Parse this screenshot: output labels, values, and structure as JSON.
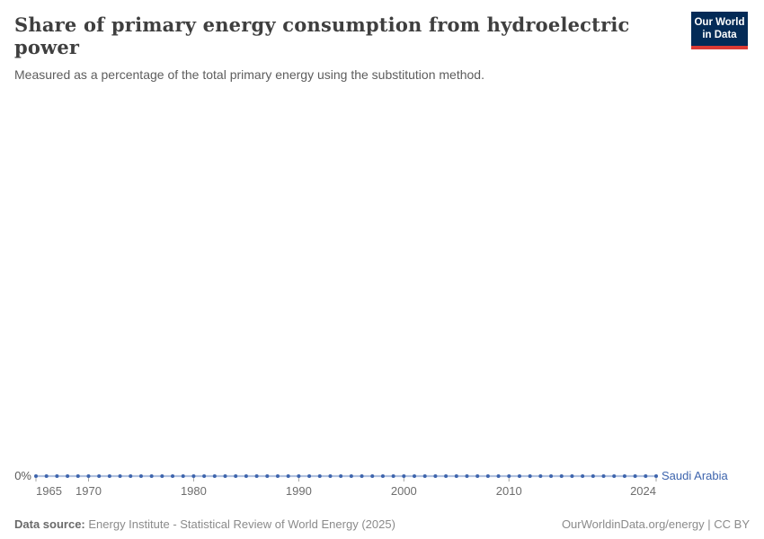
{
  "header": {
    "title": "Share of primary energy consumption from hydroelectric power",
    "subtitle": "Measured as a percentage of the total primary energy using the substitution method."
  },
  "logo": {
    "line1": "Our World",
    "line2": "in Data",
    "background_color": "#042b57",
    "bar_color": "#dc3a34"
  },
  "chart_data": {
    "type": "line",
    "title": "Share of primary energy consumption from hydroelectric power",
    "xlabel": "",
    "ylabel": "",
    "xlim": [
      1965,
      2024
    ],
    "ylim": [
      0,
      1
    ],
    "grid": false,
    "legend_position": "end-of-line",
    "ytick_label": "0%",
    "xticks": [
      {
        "year": 1965,
        "label": "1965",
        "align": "start"
      },
      {
        "year": 1970,
        "label": "1970",
        "align": "middle"
      },
      {
        "year": 1980,
        "label": "1980",
        "align": "middle"
      },
      {
        "year": 1990,
        "label": "1990",
        "align": "middle"
      },
      {
        "year": 2000,
        "label": "2000",
        "align": "middle"
      },
      {
        "year": 2010,
        "label": "2010",
        "align": "middle"
      },
      {
        "year": 2024,
        "label": "2024",
        "align": "end"
      }
    ],
    "x": [
      1965,
      1966,
      1967,
      1968,
      1969,
      1970,
      1971,
      1972,
      1973,
      1974,
      1975,
      1976,
      1977,
      1978,
      1979,
      1980,
      1981,
      1982,
      1983,
      1984,
      1985,
      1986,
      1987,
      1988,
      1989,
      1990,
      1991,
      1992,
      1993,
      1994,
      1995,
      1996,
      1997,
      1998,
      1999,
      2000,
      2001,
      2002,
      2003,
      2004,
      2005,
      2006,
      2007,
      2008,
      2009,
      2010,
      2011,
      2012,
      2013,
      2014,
      2015,
      2016,
      2017,
      2018,
      2019,
      2020,
      2021,
      2022,
      2023,
      2024
    ],
    "series": [
      {
        "name": "Saudi Arabia",
        "color": "#3d64ad",
        "values": [
          0,
          0,
          0,
          0,
          0,
          0,
          0,
          0,
          0,
          0,
          0,
          0,
          0,
          0,
          0,
          0,
          0,
          0,
          0,
          0,
          0,
          0,
          0,
          0,
          0,
          0,
          0,
          0,
          0,
          0,
          0,
          0,
          0,
          0,
          0,
          0,
          0,
          0,
          0,
          0,
          0,
          0,
          0,
          0,
          0,
          0,
          0,
          0,
          0,
          0,
          0,
          0,
          0,
          0,
          0,
          0,
          0,
          0,
          0,
          0
        ]
      }
    ],
    "axis_label_color": "#6e6e6e",
    "ytick_label_color": "#5a5a5a",
    "tick_color": "#a6a6a6"
  },
  "footer": {
    "source_label": "Data source:",
    "source_text": "Energy Institute - Statistical Review of World Energy (2025)",
    "link_text": "OurWorldinData.org/energy | CC BY"
  }
}
